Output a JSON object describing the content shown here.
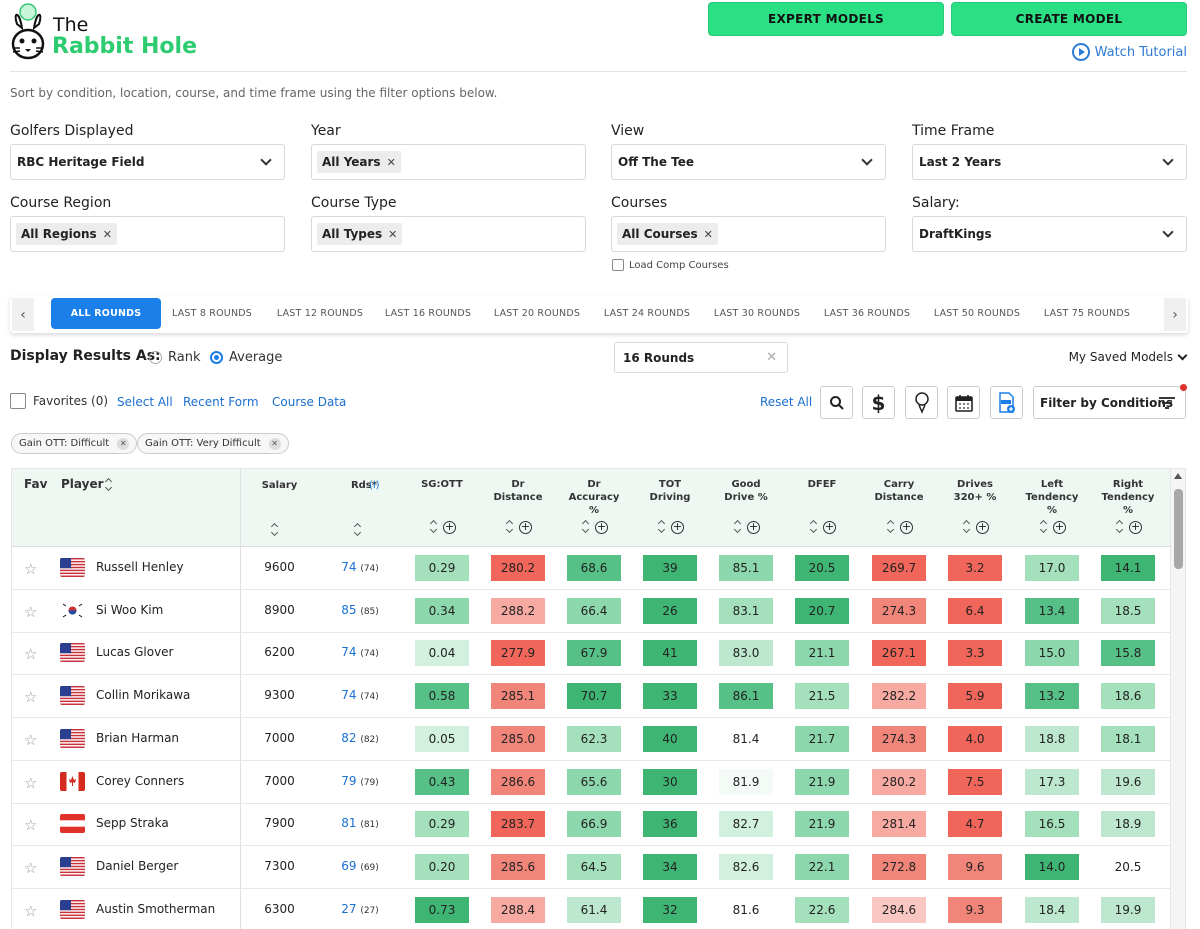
{
  "brand": {
    "line1": "The",
    "line2": "Rabbit Hole"
  },
  "header": {
    "expert_models": "EXPERT MODELS",
    "create_model": "CREATE MODEL",
    "watch_tutorial": "Watch Tutorial"
  },
  "subtitle": "Sort by condition, location, course, and time frame using the filter options below.",
  "filters": {
    "golfers_label": "Golfers Displayed",
    "golfers_value": "RBC Heritage Field",
    "year_label": "Year",
    "year_chip": "All Years",
    "view_label": "View",
    "view_value": "Off The Tee",
    "timeframe_label": "Time Frame",
    "timeframe_value": "Last 2 Years",
    "region_label": "Course Region",
    "region_chip": "All Regions",
    "type_label": "Course Type",
    "type_chip": "All Types",
    "courses_label": "Courses",
    "courses_chip": "All Courses",
    "salary_label": "Salary:",
    "salary_value": "DraftKings",
    "load_comp": "Load Comp Courses"
  },
  "round_tabs": [
    "ALL ROUNDS",
    "LAST 8 ROUNDS",
    "LAST 12 ROUNDS",
    "LAST 16 ROUNDS",
    "LAST 20 ROUNDS",
    "LAST 24 ROUNDS",
    "LAST 30 ROUNDS",
    "LAST 36 ROUNDS",
    "LAST 50 ROUNDS",
    "LAST 75 ROUNDS"
  ],
  "display": {
    "label": "Display Results As:",
    "rank": "Rank",
    "average": "Average",
    "rounds_value": "16 Rounds",
    "saved_models": "My Saved Models"
  },
  "actions": {
    "favorites": "Favorites (0)",
    "select_all": "Select All",
    "recent_form": "Recent Form",
    "course_data": "Course Data",
    "reset_all": "Reset All",
    "filter_conditions": "Filter by Conditions"
  },
  "condition_tags": [
    "Gain OTT: Difficult",
    "Gain OTT: Very Difficult"
  ],
  "table": {
    "headers": {
      "fav": "Fav",
      "player": "Player",
      "salary": "Salary",
      "rds": "Rds*",
      "rds_info": "(i)",
      "stats": [
        [
          "SG:OTT"
        ],
        [
          "Dr",
          "Distance"
        ],
        [
          "Dr",
          "Accuracy",
          "%"
        ],
        [
          "TOT",
          "Driving"
        ],
        [
          "Good",
          "Drive %"
        ],
        [
          "DFEF"
        ],
        [
          "Carry",
          "Distance"
        ],
        [
          "Drives",
          "320+ %"
        ],
        [
          "Left",
          "Tendency",
          "%"
        ],
        [
          "Right",
          "Tendency",
          "%"
        ]
      ]
    },
    "rows": [
      {
        "flag": "us",
        "name": "Russell Henley",
        "salary": "9600",
        "rds": "74",
        "rds_sub": "(74)",
        "vals": [
          "0.29",
          "280.2",
          "68.6",
          "39",
          "85.1",
          "20.5",
          "269.7",
          "3.2",
          "17.0",
          "14.1"
        ],
        "colors": [
          "#a4e0bc",
          "#f1665a",
          "#56c087",
          "#3fb574",
          "#8dd7ac",
          "#3fb574",
          "#f1665a",
          "#f1665a",
          "#a4e0bc",
          "#3fb574"
        ]
      },
      {
        "flag": "kr",
        "name": "Si Woo Kim",
        "salary": "8900",
        "rds": "85",
        "rds_sub": "(85)",
        "vals": [
          "0.34",
          "288.2",
          "66.4",
          "26",
          "83.1",
          "20.7",
          "274.3",
          "6.4",
          "13.4",
          "18.5"
        ],
        "colors": [
          "#8dd7ac",
          "#f6aaa2",
          "#8dd7ac",
          "#3fb574",
          "#a4e0bc",
          "#3fb574",
          "#f2857a",
          "#f1665a",
          "#56c087",
          "#a4e0bc"
        ]
      },
      {
        "flag": "us",
        "name": "Lucas Glover",
        "salary": "6200",
        "rds": "74",
        "rds_sub": "(74)",
        "vals": [
          "0.04",
          "277.9",
          "67.9",
          "41",
          "83.0",
          "21.1",
          "267.1",
          "3.3",
          "15.0",
          "15.8"
        ],
        "colors": [
          "#d2f0de",
          "#f1665a",
          "#56c087",
          "#3fb574",
          "#bde8cf",
          "#8dd7ac",
          "#f1665a",
          "#f1665a",
          "#8dd7ac",
          "#56c087"
        ]
      },
      {
        "flag": "us",
        "name": "Collin Morikawa",
        "salary": "9300",
        "rds": "74",
        "rds_sub": "(74)",
        "vals": [
          "0.58",
          "285.1",
          "70.7",
          "33",
          "86.1",
          "21.5",
          "282.2",
          "5.9",
          "13.2",
          "18.6"
        ],
        "colors": [
          "#56c087",
          "#f2857a",
          "#3fb574",
          "#3fb574",
          "#56c087",
          "#a4e0bc",
          "#f6aaa2",
          "#f1665a",
          "#56c087",
          "#a4e0bc"
        ]
      },
      {
        "flag": "us",
        "name": "Brian Harman",
        "salary": "7000",
        "rds": "82",
        "rds_sub": "(82)",
        "vals": [
          "0.05",
          "285.0",
          "62.3",
          "40",
          "81.4",
          "21.7",
          "274.3",
          "4.0",
          "18.8",
          "18.1"
        ],
        "colors": [
          "#d2f0de",
          "#f2857a",
          "#a4e0bc",
          "#3fb574",
          "#ffffff",
          "#8dd7ac",
          "#f2857a",
          "#f1665a",
          "#bde8cf",
          "#a4e0bc"
        ]
      },
      {
        "flag": "ca",
        "name": "Corey Conners",
        "salary": "7000",
        "rds": "79",
        "rds_sub": "(79)",
        "vals": [
          "0.43",
          "286.6",
          "65.6",
          "30",
          "81.9",
          "21.9",
          "280.2",
          "7.5",
          "17.3",
          "19.6"
        ],
        "colors": [
          "#56c087",
          "#f2857a",
          "#8dd7ac",
          "#3fb574",
          "#f4fbf7",
          "#8dd7ac",
          "#f6aaa2",
          "#f1665a",
          "#bde8cf",
          "#bde8cf"
        ]
      },
      {
        "flag": "at",
        "name": "Sepp Straka",
        "salary": "7900",
        "rds": "81",
        "rds_sub": "(81)",
        "vals": [
          "0.29",
          "283.7",
          "66.9",
          "36",
          "82.7",
          "21.9",
          "281.4",
          "4.7",
          "16.5",
          "18.9"
        ],
        "colors": [
          "#a4e0bc",
          "#f1665a",
          "#8dd7ac",
          "#3fb574",
          "#d2f0de",
          "#8dd7ac",
          "#f6aaa2",
          "#f1665a",
          "#a4e0bc",
          "#bde8cf"
        ]
      },
      {
        "flag": "us",
        "name": "Daniel Berger",
        "salary": "7300",
        "rds": "69",
        "rds_sub": "(69)",
        "vals": [
          "0.20",
          "285.6",
          "64.5",
          "34",
          "82.6",
          "22.1",
          "272.8",
          "9.6",
          "14.0",
          "20.5"
        ],
        "colors": [
          "#a4e0bc",
          "#f2857a",
          "#a4e0bc",
          "#3fb574",
          "#d2f0de",
          "#8dd7ac",
          "#f2857a",
          "#f2857a",
          "#3fb574",
          "#ffffff"
        ]
      },
      {
        "flag": "us",
        "name": "Austin Smotherman",
        "salary": "6300",
        "rds": "27",
        "rds_sub": "(27)",
        "vals": [
          "0.73",
          "288.4",
          "61.4",
          "32",
          "81.6",
          "22.6",
          "284.6",
          "9.3",
          "18.4",
          "19.9"
        ],
        "colors": [
          "#3fb574",
          "#f6aaa2",
          "#bde8cf",
          "#3fb574",
          "#ffffff",
          "#a4e0bc",
          "#f9c6c1",
          "#f2857a",
          "#bde8cf",
          "#bde8cf"
        ]
      }
    ]
  }
}
